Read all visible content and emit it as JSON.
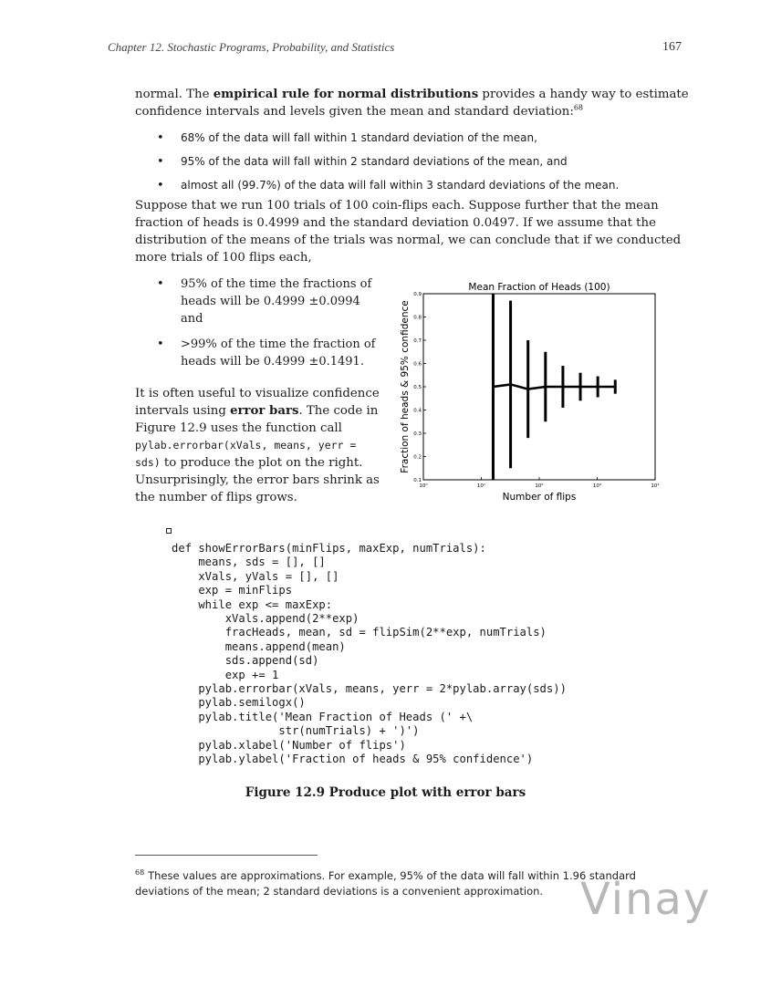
{
  "header": {
    "running_head": "Chapter 12.  Stochastic Programs, Probability, and Statistics",
    "page_number": "167"
  },
  "intro": {
    "pre": "normal.  The ",
    "bold": "empirical rule for normal distributions",
    "post": " provides a handy way to estimate confidence intervals and levels given the mean and standard deviation:",
    "footnote_ref": "68"
  },
  "rule_bullets": [
    "68% of the data will fall within 1 standard deviation of the mean,",
    "95% of the data will fall within 2 standard deviations of the mean, and",
    "almost all (99.7%) of the data will fall within 3 standard deviations of the mean."
  ],
  "suppose_paragraph": "Suppose that we run 100 trials of 100 coin-flips each.  Suppose further that the mean fraction of heads is 0.4999 and the standard deviation 0.0497.  If we assume that the distribution of the means of the trials was normal, we can conclude that if we conducted more trials of 100 flips each,",
  "result_bullets": [
    "95% of the time the fractions of heads will be 0.4999 ±0.0994 and",
    ">99% of the time the fraction of heads will be 0.4999 ±0.1491."
  ],
  "errorbar_text": {
    "pre": "It is often useful to visualize confidence intervals using ",
    "bold": "error bars",
    "mid": ".  The code in Figure 12.9 uses the function call ",
    "code": "pylab.errorbar(xVals, means, yerr = sds)",
    "post": " to produce the plot on the right.  Unsurprisingly, the error bars shrink as the number of flips grows."
  },
  "chart_data": {
    "type": "scatter",
    "title": "Mean Fraction of Heads (100)",
    "xlabel": "Number of flips",
    "ylabel": "Fraction of heads & 95% confidence",
    "xscale": "log",
    "xlim": [
      1,
      10000
    ],
    "ylim": [
      0.1,
      0.9
    ],
    "xticks": [
      {
        "value": 1,
        "label": "10⁰"
      },
      {
        "value": 10,
        "label": "10¹"
      },
      {
        "value": 100,
        "label": "10²"
      },
      {
        "value": 1000,
        "label": "10³"
      },
      {
        "value": 10000,
        "label": "10⁴"
      }
    ],
    "yticks": [
      0.1,
      0.2,
      0.3,
      0.4,
      0.5,
      0.6,
      0.7,
      0.8,
      0.9
    ],
    "grid": false,
    "series": [
      {
        "x": [
          16,
          32,
          64,
          128,
          256,
          512,
          1024,
          2048
        ],
        "y": [
          0.5,
          0.51,
          0.49,
          0.5,
          0.5,
          0.5,
          0.5,
          0.5
        ],
        "yerr": [
          0.49,
          0.36,
          0.21,
          0.15,
          0.09,
          0.06,
          0.045,
          0.03
        ]
      }
    ]
  },
  "code": {
    "lines": [
      "def showErrorBars(minFlips, maxExp, numTrials):",
      "    means, sds = [], []",
      "    xVals, yVals = [], []",
      "    exp = minFlips",
      "    while exp <= maxExp:",
      "        xVals.append(2**exp)",
      "        fracHeads, mean, sd = flipSim(2**exp, numTrials)",
      "        means.append(mean)",
      "        sds.append(sd)",
      "        exp += 1",
      "    pylab.errorbar(xVals, means, yerr = 2*pylab.array(sds))",
      "    pylab.semilogx()",
      "    pylab.title('Mean Fraction of Heads (' +\\",
      "                str(numTrials) + ')')",
      "    pylab.xlabel('Number of flips')",
      "    pylab.ylabel('Fraction of heads & 95% confidence')"
    ]
  },
  "figure_caption": "Figure 12.9  Produce plot with error bars",
  "footnote": {
    "marker": "68",
    "text": "These values are approximations. For example, 95% of the data will fall within 1.96 standard deviations of the mean; 2 standard deviations is a convenient approximation."
  },
  "watermark": {
    "name": "Vinay"
  }
}
